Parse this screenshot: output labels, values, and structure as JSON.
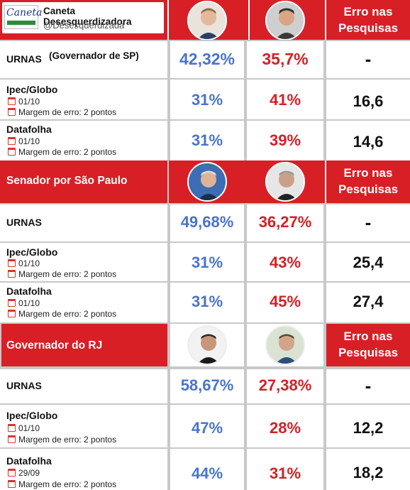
{
  "brand": {
    "logo_word": "Caneta",
    "name": "Caneta Desesquerdizadora",
    "handle": "@Desesquerdizada"
  },
  "colors": {
    "header_red": "#d81f26",
    "blue": "#4a74c9",
    "red": "#d32027"
  },
  "icons": {
    "avatar_placeholder": "person-silhouette",
    "calendar": "calendar-icon",
    "margin": "clipboard-icon"
  },
  "sections": [
    {
      "title": "",
      "erro_line1": "Erro nas",
      "erro_line2": "Pesquisas",
      "rows": [
        {
          "label": "URNAS",
          "label_note": "(Governador de SP)",
          "date": "",
          "margin": "",
          "a": "42,32%",
          "b": "35,7%",
          "erro": "-"
        },
        {
          "label": "Ipec/Globo",
          "label_note": "",
          "date": "01/10",
          "margin": "Margem de erro: 2 pontos",
          "a": "31%",
          "b": "41%",
          "erro": "16,6"
        },
        {
          "label": "Datafolha",
          "label_note": "",
          "date": "01/10",
          "margin": "Margem de erro: 2 pontos",
          "a": "31%",
          "b": "39%",
          "erro": "14,6"
        }
      ]
    },
    {
      "title": "Senador por São Paulo",
      "erro_line1": "Erro nas",
      "erro_line2": "Pesquisas",
      "rows": [
        {
          "label": "URNAS",
          "label_note": "",
          "date": "",
          "margin": "",
          "a": "49,68%",
          "b": "36,27%",
          "erro": "-"
        },
        {
          "label": "Ipec/Globo",
          "label_note": "",
          "date": "01/10",
          "margin": "Margem de erro: 2 pontos",
          "a": "31%",
          "b": "43%",
          "erro": "25,4"
        },
        {
          "label": "Datafolha",
          "label_note": "",
          "date": "01/10",
          "margin": "Margem de erro: 2 pontos",
          "a": "31%",
          "b": "45%",
          "erro": "27,4"
        }
      ]
    },
    {
      "title": "Governador do RJ",
      "erro_line1": "Erro nas",
      "erro_line2": "Pesquisas",
      "rows": [
        {
          "label": "URNAS",
          "label_note": "",
          "date": "",
          "margin": "",
          "a": "58,67%",
          "b": "27,38%",
          "erro": "-"
        },
        {
          "label": "Ipec/Globo",
          "label_note": "",
          "date": "01/10",
          "margin": "Margem de erro: 2 pontos",
          "a": "47%",
          "b": "28%",
          "erro": "12,2"
        },
        {
          "label": "Datafolha",
          "label_note": "",
          "date": "29/09",
          "margin": "Margem de erro: 2 pontos",
          "a": "44%",
          "b": "31%",
          "erro": "18,2"
        }
      ]
    }
  ]
}
